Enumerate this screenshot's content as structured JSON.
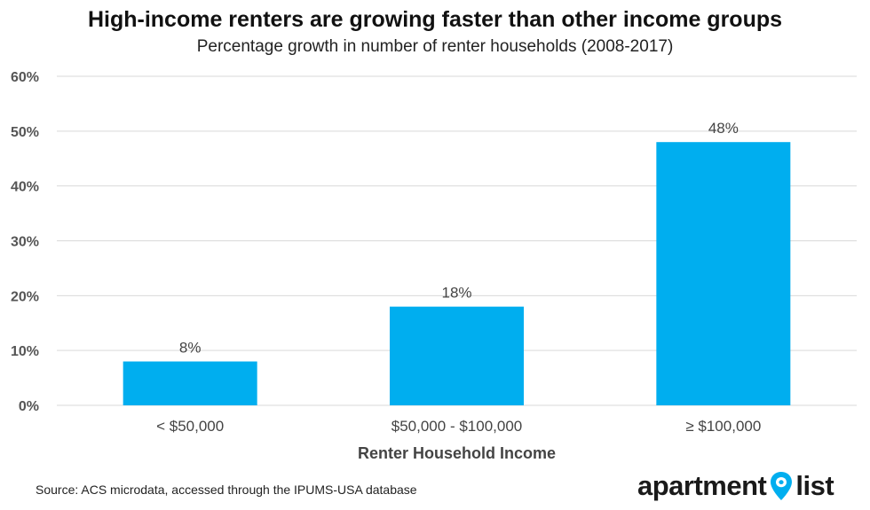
{
  "title": "High-income renters are growing faster than other income groups",
  "subtitle": "Percentage growth in number of renter households (2008-2017)",
  "source": "Source: ACS microdata, accessed through the IPUMS-USA database",
  "logo": {
    "word1": "apartment",
    "word2": "list",
    "icon": "map-pin-icon"
  },
  "colors": {
    "bar": "#00AEEF",
    "grid": "#D9D9D9",
    "brand": "#00AEEF"
  },
  "chart_data": {
    "type": "bar",
    "categories": [
      "< $50,000",
      "$50,000 - $100,000",
      "≥ $100,000"
    ],
    "values": [
      8,
      18,
      48
    ],
    "data_labels": [
      "8%",
      "18%",
      "48%"
    ],
    "xlabel": "Renter Household Income",
    "ylabel": "",
    "ylim": [
      0,
      60
    ],
    "yticks": [
      0,
      10,
      20,
      30,
      40,
      50,
      60
    ],
    "ytick_labels": [
      "0%",
      "10%",
      "20%",
      "30%",
      "40%",
      "50%",
      "60%"
    ],
    "grid": true,
    "legend": "none"
  }
}
